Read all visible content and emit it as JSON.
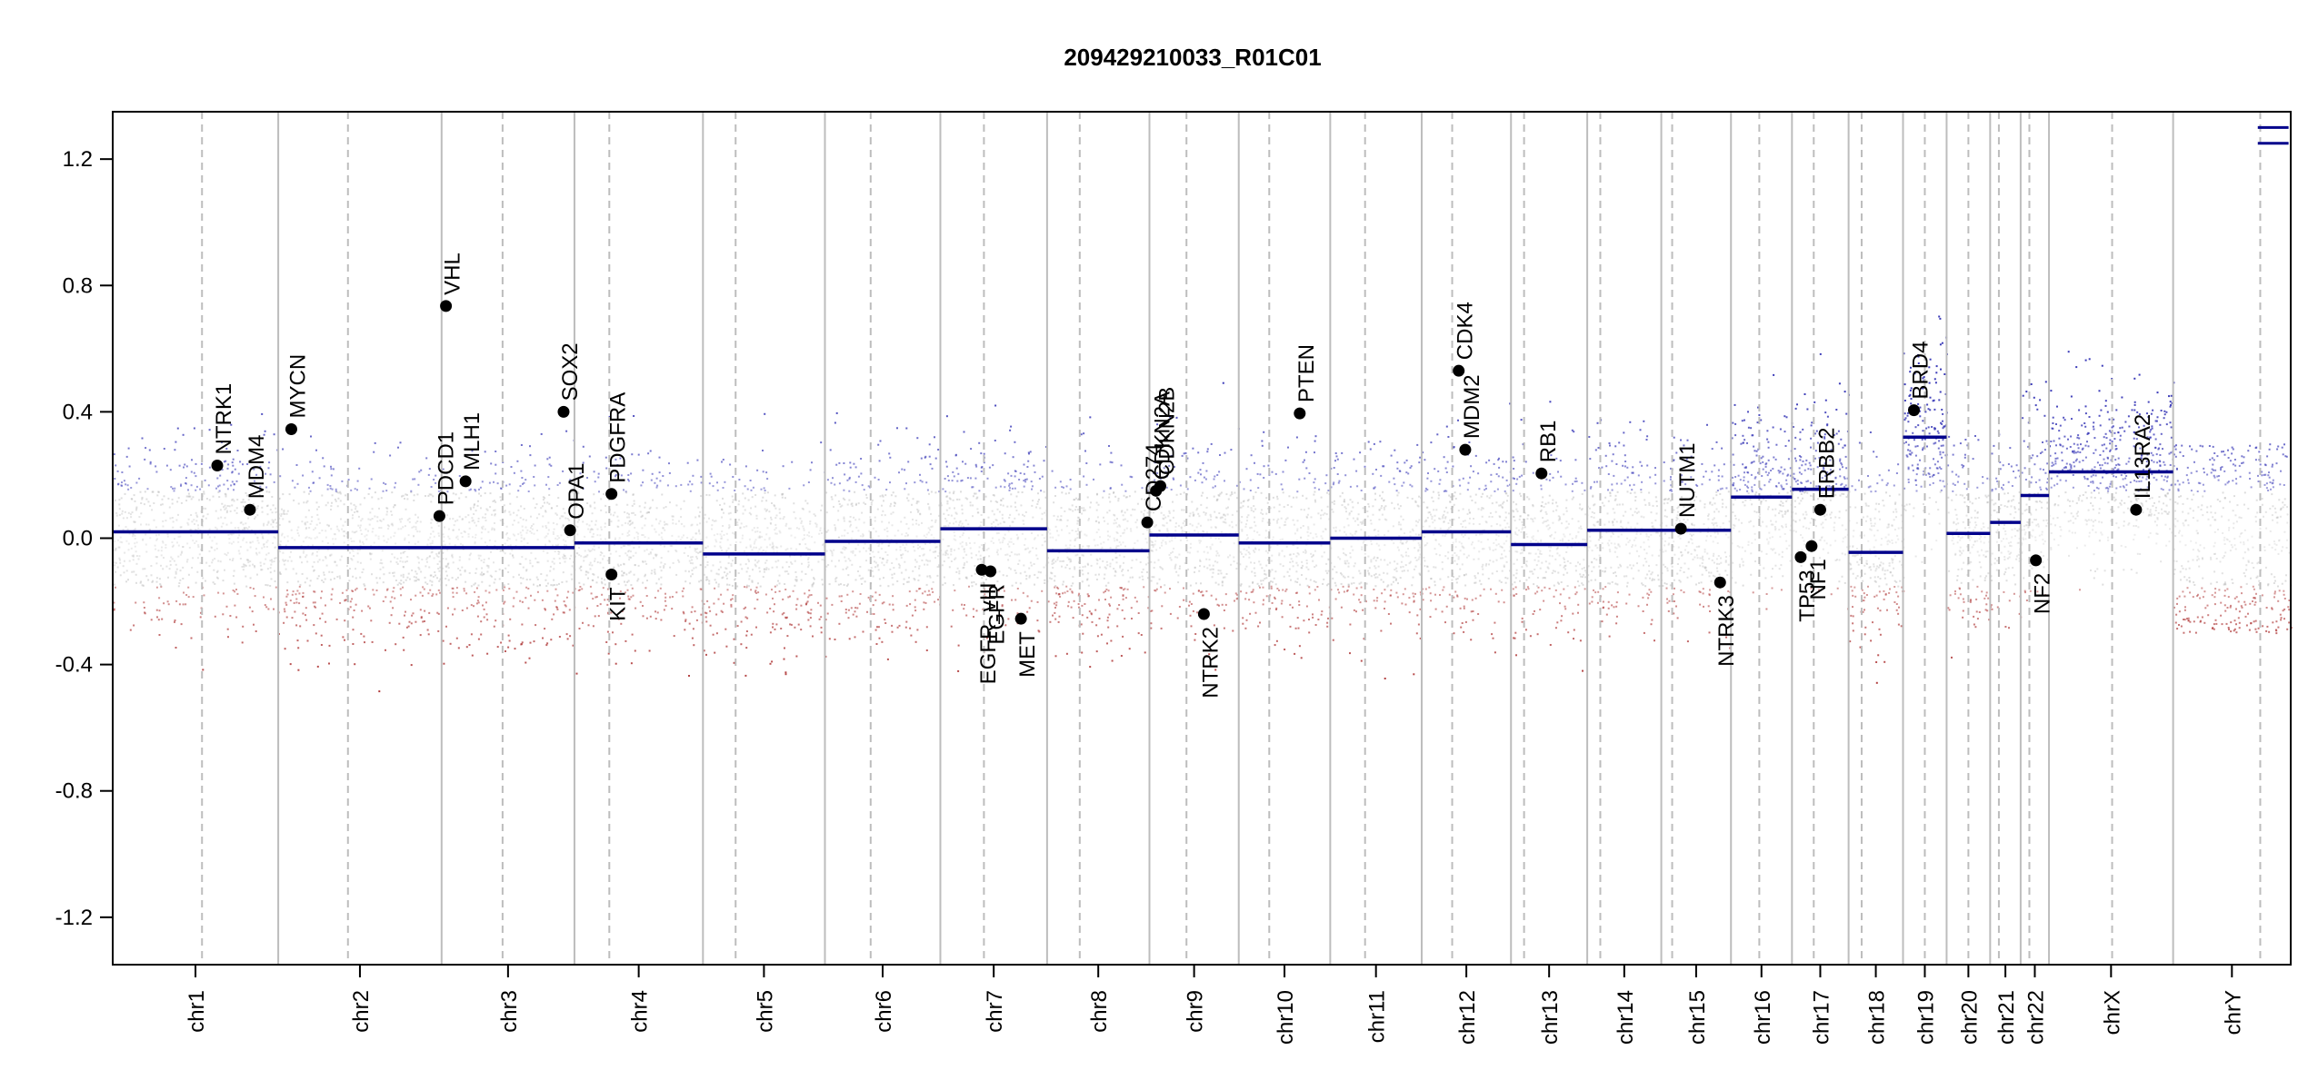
{
  "chart_data": {
    "type": "scatter",
    "title": "209429210033_R01C01",
    "xlabel": "",
    "ylabel": "",
    "ylim": [
      -1.35,
      1.35
    ],
    "y_ticks": [
      "1.2",
      "0.8",
      "0.4",
      "0.0",
      "-0.4",
      "-0.8",
      "-1.2"
    ],
    "y_tick_values": [
      1.2,
      0.8,
      0.4,
      0.0,
      -0.4,
      -0.8,
      -1.2
    ],
    "grid": false,
    "colors": {
      "gain": "#3b3bb8",
      "neutral": "#b8b8b8",
      "loss": "#b03a3a",
      "segment": "#00008b",
      "gene_point": "#000000",
      "chrom_boundary": "#bdbdbd",
      "centromere": "#bdbdbd"
    },
    "x_range": [
      0,
      100
    ],
    "chromosomes": [
      {
        "name": "chr1",
        "start": 0.0,
        "end": 7.6,
        "centromere": 4.1,
        "segment": 0.02
      },
      {
        "name": "chr2",
        "start": 7.6,
        "end": 15.1,
        "centromere": 10.8,
        "segment": -0.03
      },
      {
        "name": "chr3",
        "start": 15.1,
        "end": 21.2,
        "centromere": 17.9,
        "segment": -0.03
      },
      {
        "name": "chr4",
        "start": 21.2,
        "end": 27.1,
        "centromere": 22.8,
        "segment": -0.015
      },
      {
        "name": "chr5",
        "start": 27.1,
        "end": 32.7,
        "centromere": 28.6,
        "segment": -0.05
      },
      {
        "name": "chr6",
        "start": 32.7,
        "end": 38.0,
        "centromere": 34.8,
        "segment": -0.01
      },
      {
        "name": "chr7",
        "start": 38.0,
        "end": 42.9,
        "centromere": 40.0,
        "segment": 0.03
      },
      {
        "name": "chr8",
        "start": 42.9,
        "end": 47.6,
        "centromere": 44.4,
        "segment": -0.04
      },
      {
        "name": "chr9",
        "start": 47.6,
        "end": 51.7,
        "centromere": 49.3,
        "segment": 0.01
      },
      {
        "name": "chr10",
        "start": 51.7,
        "end": 55.9,
        "centromere": 53.1,
        "segment": -0.015
      },
      {
        "name": "chr11",
        "start": 55.9,
        "end": 60.1,
        "centromere": 57.5,
        "segment": 0.0
      },
      {
        "name": "chr12",
        "start": 60.1,
        "end": 64.2,
        "centromere": 61.5,
        "segment": 0.02
      },
      {
        "name": "chr13",
        "start": 64.2,
        "end": 67.7,
        "centromere": 64.8,
        "segment": -0.02
      },
      {
        "name": "chr14",
        "start": 67.7,
        "end": 71.1,
        "centromere": 68.3,
        "segment": 0.025
      },
      {
        "name": "chr15",
        "start": 71.1,
        "end": 74.3,
        "centromere": 71.6,
        "segment": 0.025
      },
      {
        "name": "chr16",
        "start": 74.3,
        "end": 77.1,
        "centromere": 75.6,
        "segment": 0.13
      },
      {
        "name": "chr17",
        "start": 77.1,
        "end": 79.7,
        "centromere": 78.1,
        "segment": 0.155
      },
      {
        "name": "chr18",
        "start": 79.7,
        "end": 82.2,
        "centromere": 80.3,
        "segment": -0.045
      },
      {
        "name": "chr19",
        "start": 82.2,
        "end": 84.2,
        "centromere": 83.2,
        "segment": 0.32
      },
      {
        "name": "chr20",
        "start": 84.2,
        "end": 86.2,
        "centromere": 85.2,
        "segment": 0.015
      },
      {
        "name": "chr21",
        "start": 86.2,
        "end": 87.6,
        "centromere": 86.6,
        "segment": 0.05
      },
      {
        "name": "chr22",
        "start": 87.6,
        "end": 88.9,
        "centromere": 88.0,
        "segment": 0.135
      },
      {
        "name": "chrX",
        "start": 88.9,
        "end": 94.6,
        "centromere": 91.8,
        "segment": 0.21
      },
      {
        "name": "chrY",
        "start": 94.6,
        "end": 100.0,
        "centromere": 98.6,
        "segment": null
      }
    ],
    "chrY_segments": [
      1.3,
      1.25
    ],
    "genes": [
      {
        "name": "NTRK1",
        "x": 4.8,
        "y": 0.23
      },
      {
        "name": "MDM4",
        "x": 6.3,
        "y": 0.09
      },
      {
        "name": "MYCN",
        "x": 8.2,
        "y": 0.345
      },
      {
        "name": "PDCD1",
        "x": 15.0,
        "y": 0.07
      },
      {
        "name": "VHL",
        "x": 15.3,
        "y": 0.735
      },
      {
        "name": "MLH1",
        "x": 16.2,
        "y": 0.18
      },
      {
        "name": "OPA1",
        "x": 21.0,
        "y": 0.025
      },
      {
        "name": "SOX2",
        "x": 20.7,
        "y": 0.4
      },
      {
        "name": "PDGFRA",
        "x": 22.9,
        "y": 0.14
      },
      {
        "name": "KIT",
        "x": 22.9,
        "y": -0.115
      },
      {
        "name": "EGFR_vIII",
        "x": 39.9,
        "y": -0.1
      },
      {
        "name": "EGFR",
        "x": 40.3,
        "y": -0.105
      },
      {
        "name": "MET",
        "x": 41.7,
        "y": -0.255
      },
      {
        "name": "CD274",
        "x": 47.5,
        "y": 0.05
      },
      {
        "name": "CDKN2A",
        "x": 47.9,
        "y": 0.15
      },
      {
        "name": "CDKN2B",
        "x": 48.1,
        "y": 0.165
      },
      {
        "name": "NTRK2",
        "x": 50.1,
        "y": -0.24
      },
      {
        "name": "PTEN",
        "x": 54.5,
        "y": 0.395
      },
      {
        "name": "MDM2",
        "x": 62.1,
        "y": 0.28
      },
      {
        "name": "CDK4",
        "x": 61.8,
        "y": 0.53
      },
      {
        "name": "RB1",
        "x": 65.6,
        "y": 0.205
      },
      {
        "name": "NUTM1",
        "x": 72.0,
        "y": 0.03
      },
      {
        "name": "NTRK3",
        "x": 73.8,
        "y": -0.14
      },
      {
        "name": "TP53",
        "x": 77.5,
        "y": -0.06
      },
      {
        "name": "NF1",
        "x": 78.0,
        "y": -0.025
      },
      {
        "name": "ERBB2",
        "x": 78.4,
        "y": 0.09
      },
      {
        "name": "BRD4",
        "x": 82.7,
        "y": 0.405
      },
      {
        "name": "NF2",
        "x": 88.3,
        "y": -0.07
      },
      {
        "name": "IL13RA2",
        "x": 92.9,
        "y": 0.09
      }
    ]
  }
}
